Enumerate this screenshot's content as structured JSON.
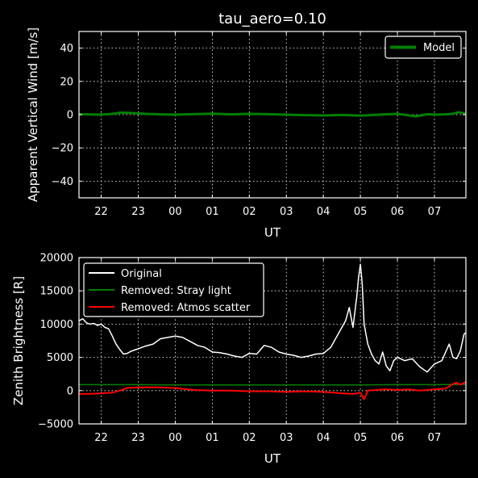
{
  "chart_data": [
    {
      "type": "line",
      "title": "tau_aero=0.10",
      "xlabel": "UT",
      "ylabel": "Apparent Vertical Wind [m/s]",
      "xlim": [
        21.4,
        31.85
      ],
      "ylim": [
        -50,
        50
      ],
      "xticks": [
        22,
        23,
        24,
        25,
        26,
        27,
        28,
        29,
        30,
        31
      ],
      "xtick_labels": [
        "22",
        "23",
        "00",
        "01",
        "02",
        "03",
        "04",
        "05",
        "06",
        "07"
      ],
      "yticks": [
        -40,
        -20,
        0,
        20,
        40
      ],
      "ytick_labels": [
        "−40",
        "−20",
        "0",
        "20",
        "40"
      ],
      "grid": true,
      "legend_position": "top-right",
      "series": [
        {
          "name": "Model",
          "color": "#008000",
          "x": [
            21.4,
            21.9,
            22.2,
            22.4,
            22.5,
            22.8,
            23.2,
            23.6,
            24.0,
            24.5,
            25.0,
            25.5,
            26.0,
            26.5,
            27.0,
            27.5,
            28.0,
            28.5,
            29.0,
            29.5,
            30.0,
            30.3,
            30.5,
            30.8,
            31.0,
            31.3,
            31.5,
            31.65,
            31.85
          ],
          "values": [
            0.3,
            0.0,
            0.3,
            0.7,
            1.2,
            1.0,
            0.5,
            0.2,
            0.0,
            0.3,
            0.6,
            0.2,
            0.5,
            0.3,
            0.0,
            -0.3,
            -0.5,
            -0.2,
            -0.6,
            0.0,
            0.5,
            -0.4,
            -1.0,
            0.3,
            0.0,
            0.2,
            0.5,
            1.5,
            0.5
          ]
        }
      ]
    },
    {
      "type": "line",
      "xlabel": "UT",
      "ylabel": "Zenith Brightness [R]",
      "xlim": [
        21.4,
        31.85
      ],
      "ylim": [
        -5000,
        20000
      ],
      "xticks": [
        22,
        23,
        24,
        25,
        26,
        27,
        28,
        29,
        30,
        31
      ],
      "xtick_labels": [
        "22",
        "23",
        "00",
        "01",
        "02",
        "03",
        "04",
        "05",
        "06",
        "07"
      ],
      "yticks": [
        -5000,
        0,
        5000,
        10000,
        15000,
        20000
      ],
      "ytick_labels": [
        "−5000",
        "0",
        "5000",
        "10000",
        "15000",
        "20000"
      ],
      "grid": true,
      "legend_position": "top-left",
      "series": [
        {
          "name": "Original",
          "color": "#ffffff",
          "x": [
            21.4,
            21.5,
            21.6,
            21.7,
            21.8,
            21.9,
            22.0,
            22.1,
            22.2,
            22.3,
            22.4,
            22.5,
            22.6,
            22.7,
            22.8,
            22.9,
            23.0,
            23.2,
            23.4,
            23.6,
            23.8,
            24.0,
            24.2,
            24.4,
            24.6,
            24.8,
            25.0,
            25.2,
            25.4,
            25.6,
            25.8,
            26.0,
            26.2,
            26.4,
            26.6,
            26.8,
            27.0,
            27.2,
            27.4,
            27.6,
            27.8,
            28.0,
            28.2,
            28.4,
            28.6,
            28.7,
            28.8,
            28.9,
            28.95,
            29.0,
            29.05,
            29.1,
            29.2,
            29.3,
            29.4,
            29.5,
            29.6,
            29.7,
            29.8,
            29.9,
            30.0,
            30.2,
            30.4,
            30.6,
            30.8,
            31.0,
            31.2,
            31.4,
            31.5,
            31.6,
            31.7,
            31.8,
            31.85
          ],
          "values": [
            10500,
            10800,
            10200,
            10000,
            10100,
            9800,
            10000,
            9500,
            9300,
            8200,
            7000,
            6200,
            5500,
            5600,
            5900,
            6100,
            6300,
            6700,
            7000,
            7800,
            8000,
            8200,
            8000,
            7400,
            6800,
            6500,
            5800,
            5700,
            5500,
            5200,
            5000,
            5600,
            5500,
            6800,
            6500,
            5800,
            5500,
            5300,
            5000,
            5200,
            5500,
            5600,
            6500,
            8500,
            10500,
            12500,
            9500,
            14000,
            17000,
            19000,
            16000,
            10000,
            7000,
            5500,
            4500,
            4000,
            5800,
            3700,
            3000,
            4500,
            5000,
            4500,
            4800,
            3600,
            2800,
            4000,
            4500,
            7000,
            5000,
            4800,
            6000,
            8500,
            8700
          ]
        },
        {
          "name": "Removed: Stray light",
          "color": "#008000",
          "x": [
            21.4,
            22.0,
            23.0,
            24.0,
            25.0,
            26.0,
            27.0,
            28.0,
            29.0,
            30.0,
            31.0,
            31.85
          ],
          "values": [
            900,
            900,
            900,
            850,
            850,
            850,
            850,
            850,
            850,
            900,
            900,
            950
          ]
        },
        {
          "name": "Removed: Atmos scatter",
          "color": "#ff0000",
          "x": [
            21.4,
            21.7,
            22.0,
            22.3,
            22.5,
            22.7,
            23.0,
            23.5,
            24.0,
            24.5,
            25.0,
            25.5,
            26.0,
            26.5,
            27.0,
            27.5,
            28.0,
            28.5,
            28.8,
            29.0,
            29.05,
            29.1,
            29.2,
            29.4,
            29.7,
            30.0,
            30.3,
            30.6,
            31.0,
            31.3,
            31.5,
            31.6,
            31.7,
            31.85
          ],
          "values": [
            -500,
            -500,
            -400,
            -300,
            0,
            400,
            500,
            500,
            400,
            100,
            0,
            0,
            -100,
            -100,
            -200,
            -100,
            -200,
            -400,
            -500,
            -300,
            -800,
            -1300,
            0,
            100,
            200,
            100,
            200,
            0,
            200,
            300,
            1000,
            1200,
            900,
            1300
          ]
        }
      ]
    }
  ]
}
